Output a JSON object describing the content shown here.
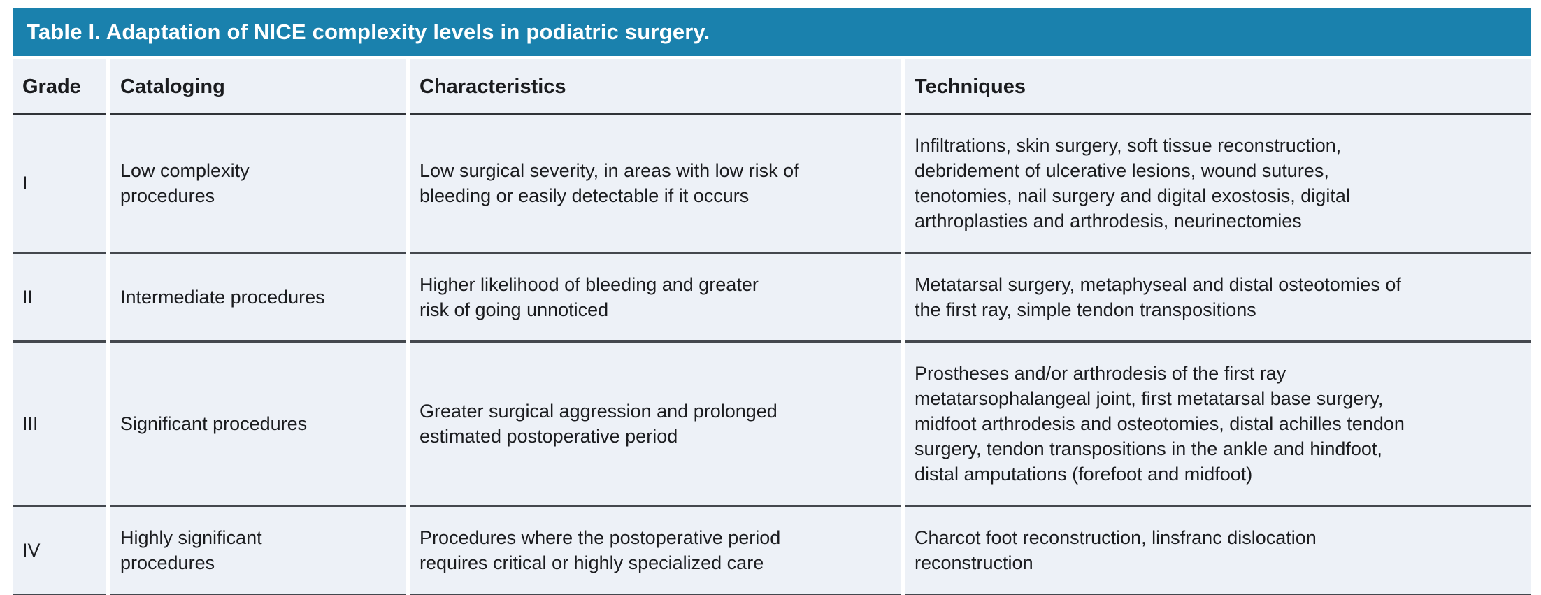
{
  "title": "Table I. Adaptation of NICE complexity levels in podiatric surgery.",
  "colors": {
    "title_bar_bg": "#1a81ad",
    "title_text": "#ffffff",
    "row_bg": "#edf1f7",
    "rule_line": "#44484e",
    "body_text": "#1b1c1f"
  },
  "columns": {
    "grade": "Grade",
    "cataloging": "Cataloging",
    "characteristics": "Characteristics",
    "techniques": "Techniques"
  },
  "rows": [
    {
      "grade": "I",
      "cataloging": "Low complexity\nprocedures",
      "characteristics": "Low surgical severity, in areas with low risk of\nbleeding or easily detectable if it occurs",
      "techniques": "Infiltrations, skin surgery, soft tissue reconstruction,\ndebridement of ulcerative lesions, wound sutures,\ntenotomies, nail surgery and digital exostosis, digital\narthroplasties and arthrodesis, neurinectomies"
    },
    {
      "grade": "II",
      "cataloging": "Intermediate procedures",
      "characteristics": "Higher likelihood of bleeding and greater\nrisk of going unnoticed",
      "techniques": "Metatarsal surgery, metaphyseal and distal osteotomies of\nthe first ray, simple tendon transpositions"
    },
    {
      "grade": "III",
      "cataloging": "Significant procedures",
      "characteristics": "Greater surgical aggression and prolonged\nestimated postoperative period",
      "techniques": "Prostheses and/or arthrodesis of the first ray\nmetatarsophalangeal joint, first metatarsal base surgery,\nmidfoot arthrodesis and osteotomies, distal achilles tendon\nsurgery, tendon transpositions in the ankle and hindfoot,\ndistal amputations (forefoot and midfoot)"
    },
    {
      "grade": "IV",
      "cataloging": "Highly significant\nprocedures",
      "characteristics": "Procedures where the postoperative period\nrequires critical or highly specialized care",
      "techniques": "Charcot foot reconstruction, linsfranc dislocation\nreconstruction"
    }
  ]
}
